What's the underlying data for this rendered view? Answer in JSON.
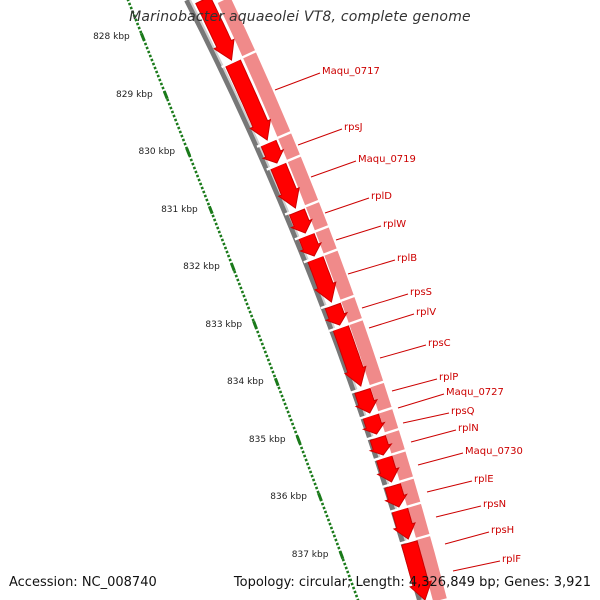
{
  "title": "Marinobacter aquaeolei VT8, complete genome",
  "footer": {
    "accession": "Accession: NC_008740",
    "summary": "Topology: circular; Length: 4,326,849 bp; Genes: 3,921"
  },
  "colors": {
    "gene_fill": "#ff0000",
    "gene_shadow": "#cc0000",
    "feature_band": "#f08a8a",
    "backbone": "#777777",
    "label": "#cc0000",
    "tick": "#1a7a1a"
  },
  "ticks": [
    "828 kbp",
    "829 kbp",
    "830 kbp",
    "831 kbp",
    "832 kbp",
    "833 kbp",
    "834 kbp",
    "835 kbp",
    "836 kbp",
    "837 kbp"
  ],
  "genes": [
    "Maqu_0717",
    "rpsJ",
    "Maqu_0719",
    "rplD",
    "rplW",
    "rplB",
    "rpsS",
    "rplV",
    "rpsC",
    "rplP",
    "Maqu_0727",
    "rpsQ",
    "rplN",
    "Maqu_0730",
    "rplE",
    "rpsN",
    "rpsH",
    "rplF"
  ]
}
